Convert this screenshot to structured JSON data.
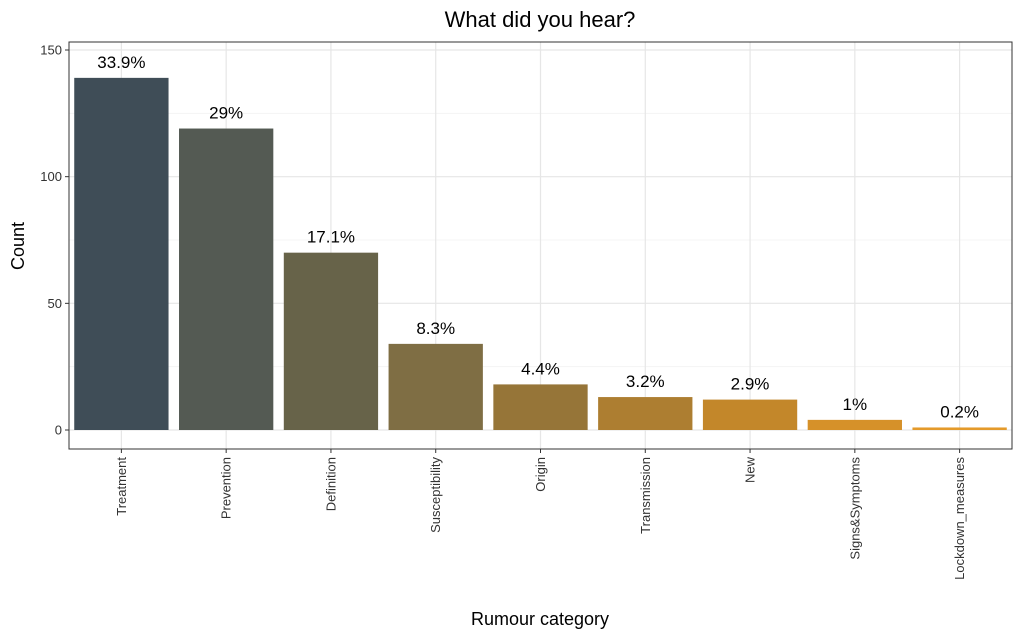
{
  "chart_data": {
    "type": "bar",
    "title": "What did you hear?",
    "xlabel": "Rumour category",
    "ylabel": "Count",
    "ylim": [
      0,
      150
    ],
    "yticks": [
      0,
      50,
      100,
      150
    ],
    "grid": true,
    "categories": [
      "Treatment",
      "Prevention",
      "Definition",
      "Susceptibility",
      "Origin",
      "Transmission",
      "New",
      "Signs&Symptoms",
      "Lockdown_measures"
    ],
    "values": [
      139,
      119,
      70,
      34,
      18,
      13,
      12,
      4,
      1
    ],
    "labels": [
      "33.9%",
      "29%",
      "17.1%",
      "8.3%",
      "4.4%",
      "3.2%",
      "2.9%",
      "1%",
      "0.2%"
    ],
    "colors": [
      "#3f4d57",
      "#545a53",
      "#676349",
      "#7f6e44",
      "#967538",
      "#ad7e31",
      "#c3872a",
      "#d69129",
      "#e49a2a"
    ]
  }
}
